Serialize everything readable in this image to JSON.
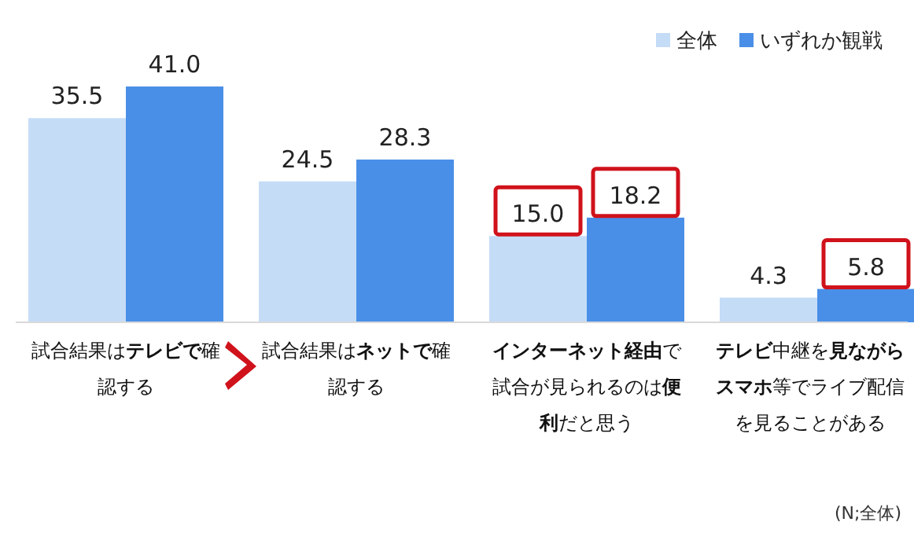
{
  "chart_data": {
    "type": "bar",
    "categories": [
      "試合結果は**テレビで**確認する",
      "試合結果は**ネットで**確認する",
      "**インターネット経由**で試合が見られるのは**便利**だと思う",
      "**テレビ**中継を**見ながら****スマホ**等でライブ配信を見ることがある"
    ],
    "series": [
      {
        "name": "全体",
        "color": "#c5dcf7",
        "values": [
          35.5,
          24.5,
          15.0,
          4.3
        ],
        "value_labels": [
          "35.5",
          "24.5",
          "15.0",
          "4.3"
        ]
      },
      {
        "name": "いずれか観戦",
        "color": "#4a8fe7",
        "values": [
          41.0,
          28.3,
          18.2,
          5.8
        ],
        "value_labels": [
          "41.0",
          "28.3",
          "18.2",
          "5.8"
        ]
      }
    ],
    "legend": "top right",
    "annotations": [
      "(N;全体)"
    ]
  }
}
